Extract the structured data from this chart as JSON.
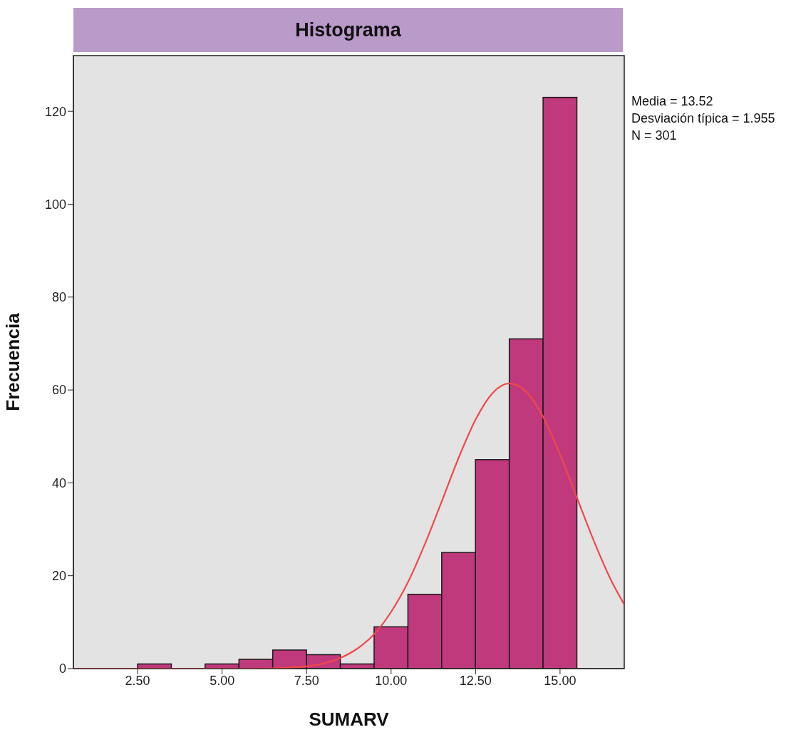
{
  "chart_data": {
    "type": "histogram",
    "title": "Histograma",
    "xlabel": "SUMARV",
    "ylabel": "Frecuencia",
    "bins": [
      2.5,
      3.5,
      4.5,
      5.5,
      6.5,
      7.5,
      8.5,
      9.5,
      10.5,
      11.5,
      12.5,
      13.5,
      14.5,
      15.5
    ],
    "values": [
      1,
      0,
      1,
      2,
      4,
      3,
      1,
      9,
      16,
      25,
      45,
      71,
      123
    ],
    "color": "#c0397c",
    "xlim": [
      0.6,
      16.9
    ],
    "xticks": [
      {
        "value": 2.5,
        "label": "2.50"
      },
      {
        "value": 5,
        "label": "5.00"
      },
      {
        "value": 7.5,
        "label": "7.50"
      },
      {
        "value": 10,
        "label": "10.00"
      },
      {
        "value": 12.5,
        "label": "12.50"
      },
      {
        "value": 15,
        "label": "15.00"
      }
    ],
    "ylim": [
      0,
      132
    ],
    "yticks": [
      0,
      20,
      40,
      60,
      80,
      100,
      120
    ],
    "marker": "none",
    "series": [
      {
        "type": "line",
        "color": "#f04848",
        "x": [
          0.6,
          6,
          7,
          8,
          8.5,
          9,
          9.5,
          10,
          10.5,
          11,
          11.5,
          12,
          12.5,
          13,
          13.5,
          14,
          14.5,
          15,
          15.5,
          16,
          16.5,
          16.9
        ],
        "values": [
          0,
          0,
          0.2,
          1.1,
          2.3,
          4.3,
          7.4,
          12.2,
          18.6,
          26.8,
          36,
          45.4,
          53.6,
          59.3,
          61.4,
          59.6,
          54.2,
          46.1,
          36.8,
          27.5,
          19.2,
          13.8
        ]
      }
    ],
    "annotations": [
      "Media = 13.52",
      "Desviación típica = 1.955",
      "N = 301"
    ]
  }
}
